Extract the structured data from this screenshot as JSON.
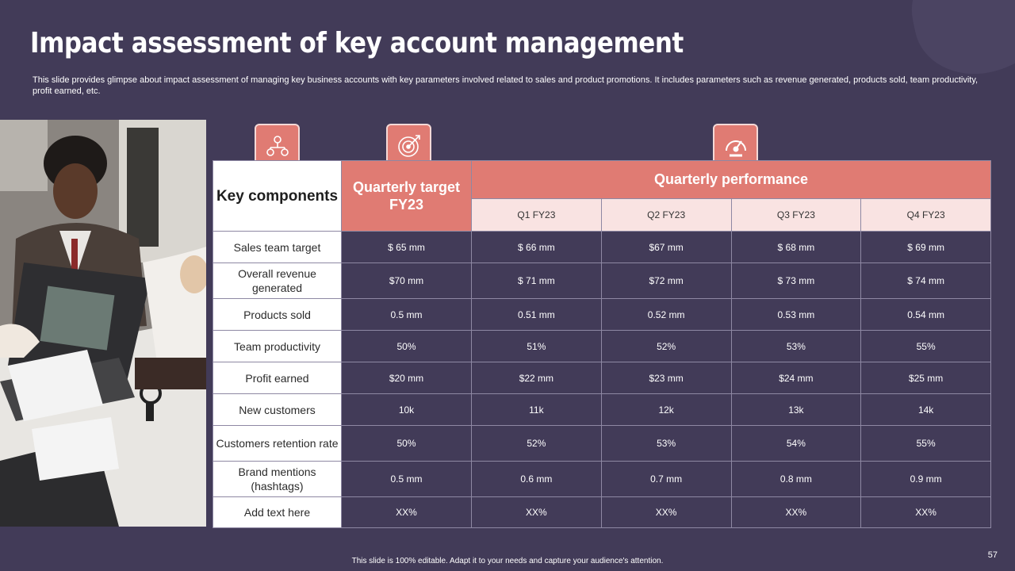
{
  "title": "Impact assessment of key account management",
  "subtitle": "This slide provides glimpse about impact assessment of managing key business accounts with key parameters involved related to sales and product promotions. It includes parameters such as revenue generated, products sold, team productivity,  profit earned, etc.",
  "table": {
    "key_header": "Key components",
    "target_header": "Quarterly target FY23",
    "performance_header": "Quarterly performance",
    "quarters": [
      "Q1 FY23",
      "Q2 FY23",
      "Q3 FY23",
      "Q4 FY23"
    ],
    "rows": [
      {
        "label": "Sales team target",
        "target": "$ 65 mm",
        "q": [
          "$ 66 mm",
          "$67  mm",
          "$ 68 mm",
          "$ 69 mm"
        ]
      },
      {
        "label": "Overall revenue generated",
        "target": "$70  mm",
        "q": [
          "$ 71 mm",
          "$72  mm",
          "$ 73 mm",
          "$ 74 mm"
        ]
      },
      {
        "label": "Products sold",
        "target": "0.5 mm",
        "q": [
          "0.51 mm",
          "0.52 mm",
          "0.53 mm",
          "0.54 mm"
        ]
      },
      {
        "label": "Team productivity",
        "target": "50%",
        "q": [
          "51%",
          "52%",
          "53%",
          "55%"
        ]
      },
      {
        "label": "Profit earned",
        "target": "$20  mm",
        "q": [
          "$22  mm",
          "$23  mm",
          "$24  mm",
          "$25  mm"
        ]
      },
      {
        "label": "New customers",
        "target": "10k",
        "q": [
          "11k",
          "12k",
          "13k",
          "14k"
        ]
      },
      {
        "label": "Customers retention rate",
        "target": "50%",
        "q": [
          "52%",
          "53%",
          "54%",
          "55%"
        ]
      },
      {
        "label": "Brand mentions (hashtags)",
        "target": "0.5 mm",
        "q": [
          "0.6 mm",
          "0.7 mm",
          "0.8 mm",
          "0.9 mm"
        ]
      },
      {
        "label": "Add text here",
        "target": "XX%",
        "q": [
          "XX%",
          "XX%",
          "XX%",
          "XX%"
        ]
      }
    ]
  },
  "icons": [
    "team-network-icon",
    "target-icon",
    "speedometer-icon"
  ],
  "footer": "This slide is 100% editable.  Adapt it to your needs and capture your audience's attention.",
  "page_number": "57",
  "colors": {
    "background": "#423b58",
    "accent": "#e07b73",
    "accent_light": "#f9e3e2"
  }
}
